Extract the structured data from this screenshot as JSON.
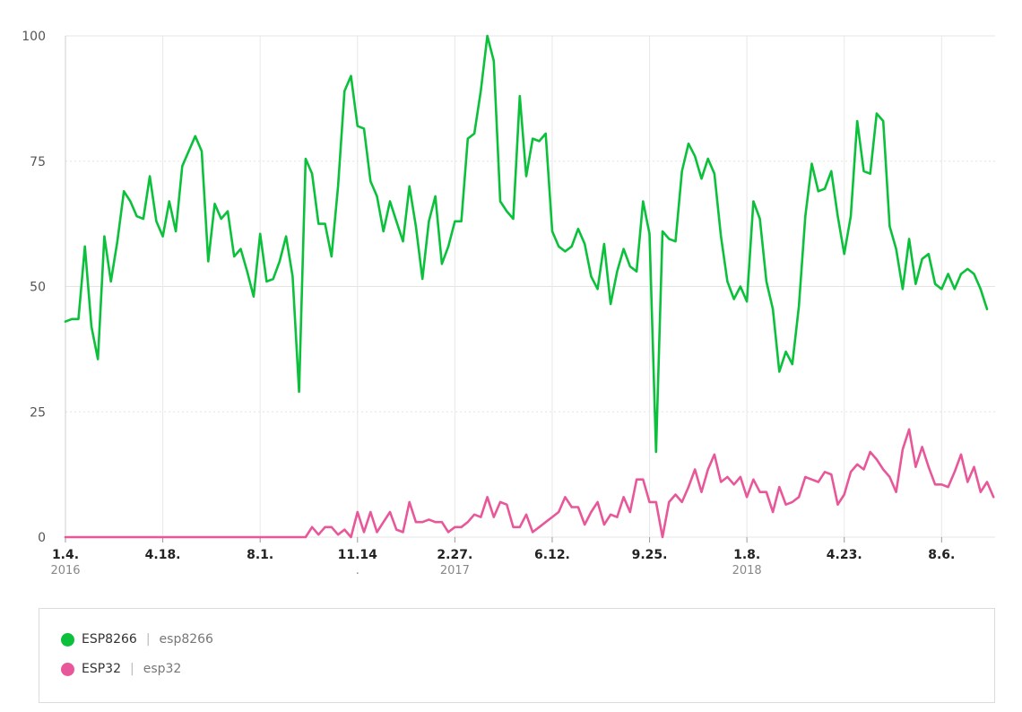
{
  "chart_data": {
    "type": "line",
    "ylim": [
      0,
      100
    ],
    "y_ticks": [
      0,
      25,
      50,
      75,
      100
    ],
    "grid": true,
    "x_tick_labels": [
      {
        "label": "1.4.",
        "year": "2016",
        "index": 0
      },
      {
        "label": "4.18.",
        "year": "",
        "index": 15
      },
      {
        "label": "8.1.",
        "year": "",
        "index": 30
      },
      {
        "label": "11.14",
        "year": ".",
        "index": 45
      },
      {
        "label": "2.27.",
        "year": "2017",
        "index": 60
      },
      {
        "label": "6.12.",
        "year": "",
        "index": 75
      },
      {
        "label": "9.25.",
        "year": "",
        "index": 90
      },
      {
        "label": "1.8.",
        "year": "2018",
        "index": 105
      },
      {
        "label": "4.23.",
        "year": "",
        "index": 120
      },
      {
        "label": "8.6.",
        "year": "",
        "index": 135
      }
    ],
    "series": [
      {
        "name": "ESP8266",
        "key": "esp8266",
        "color": "#0bc13b",
        "values": [
          43,
          43.5,
          43.5,
          58,
          42,
          35.5,
          60,
          51,
          59,
          69,
          67,
          64,
          63.5,
          72,
          63,
          60,
          67,
          61,
          74,
          77,
          80,
          77,
          55,
          66.5,
          63.5,
          65,
          56,
          57.5,
          53,
          48,
          60.5,
          51,
          51.5,
          55,
          60,
          52,
          29,
          75.5,
          72.5,
          62.5,
          62.5,
          56,
          70,
          89,
          92,
          82,
          81.5,
          71,
          68,
          61,
          67,
          63,
          59,
          70,
          62,
          51.5,
          63,
          68,
          54.5,
          58,
          63,
          63,
          79.5,
          80.5,
          89,
          100,
          95,
          67,
          65,
          63.5,
          88,
          72,
          79.5,
          79,
          80.5,
          61,
          58,
          57,
          58,
          61.5,
          58.5,
          52,
          49.5,
          58.5,
          46.5,
          53,
          57.5,
          54,
          53,
          67,
          60.5,
          17,
          61,
          59.5,
          59,
          73,
          78.5,
          76,
          71.5,
          75.5,
          72.5,
          60,
          51,
          47.5,
          50,
          47,
          67,
          63.5,
          51,
          45.5,
          33,
          37,
          34.5,
          46,
          64,
          74.5,
          69,
          69.5,
          73,
          64,
          56.5,
          64,
          83,
          73,
          72.5,
          84.5,
          83,
          62,
          57.5,
          49.5,
          59.5,
          50.5,
          55.5,
          56.5,
          50.5,
          49.5,
          52.5,
          49.5,
          52.5,
          53.5,
          52.5,
          49.5,
          45.5
        ]
      },
      {
        "name": "ESP32",
        "key": "esp32",
        "color": "#e8579a",
        "values": [
          0,
          0,
          0,
          0,
          0,
          0,
          0,
          0,
          0,
          0,
          0,
          0,
          0,
          0,
          0,
          0,
          0,
          0,
          0,
          0,
          0,
          0,
          0,
          0,
          0,
          0,
          0,
          0,
          0,
          0,
          0,
          0,
          0,
          0,
          0,
          0,
          0,
          0,
          2,
          0.5,
          2,
          2,
          0.5,
          1.5,
          0,
          5,
          1,
          5,
          1,
          3,
          5,
          1.5,
          1,
          7,
          3,
          3,
          3.5,
          3,
          3,
          1,
          2,
          2,
          3,
          4.5,
          4,
          8,
          4,
          7,
          6.5,
          2,
          2,
          4.5,
          1,
          2,
          3,
          4,
          5,
          8,
          6,
          6,
          2.5,
          5,
          7,
          2.5,
          4.5,
          4,
          8,
          5,
          11.5,
          11.5,
          7,
          7,
          0,
          7,
          8.5,
          7,
          10,
          13.5,
          9,
          13.5,
          16.5,
          11,
          12,
          10.5,
          12,
          8,
          11.5,
          9,
          9,
          5,
          10,
          6.5,
          7,
          8,
          12,
          11.5,
          11,
          13,
          12.5,
          6.5,
          8.5,
          13,
          14.5,
          13.5,
          17,
          15.5,
          13.5,
          12,
          9,
          17.5,
          21.5,
          14,
          18,
          14,
          10.5,
          10.5,
          10,
          13,
          16.5,
          11,
          14,
          9,
          11,
          8
        ]
      }
    ]
  }
}
